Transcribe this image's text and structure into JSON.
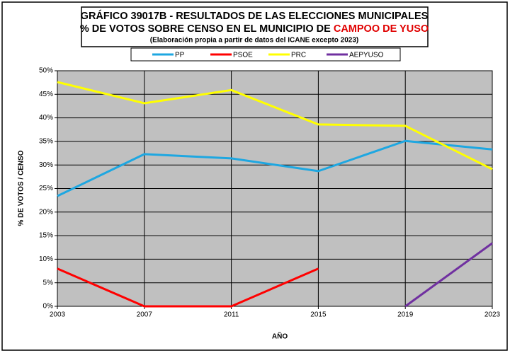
{
  "chart_data": {
    "type": "line",
    "title": "GRÁFICO 39017B - RESULTADOS DE LAS ELECCIONES MUNICIPALES",
    "subtitle_prefix": "% DE VOTOS SOBRE CENSO EN EL MUNICIPIO DE",
    "subtitle_highlight": "CAMPOO DE YUSO",
    "note": "(Elaboración propia a partir de datos del ICANE excepto 2023)",
    "x_label": "AÑO",
    "y_label": "% DE VOTOS / CENSO",
    "x": [
      2003,
      2007,
      2011,
      2015,
      2019,
      2023
    ],
    "xlim": [
      2003,
      2023
    ],
    "xticks": [
      2003,
      2007,
      2011,
      2015,
      2019,
      2023
    ],
    "ylim": [
      0,
      50
    ],
    "yticks": [
      {
        "value": 0,
        "label": "0%"
      },
      {
        "value": 5,
        "label": "5%"
      },
      {
        "value": 10,
        "label": "10%"
      },
      {
        "value": 15,
        "label": "15%"
      },
      {
        "value": 20,
        "label": "20%"
      },
      {
        "value": 25,
        "label": "25%"
      },
      {
        "value": 30,
        "label": "30%"
      },
      {
        "value": 35,
        "label": "35%"
      },
      {
        "value": 40,
        "label": "40%"
      },
      {
        "value": 45,
        "label": "45%"
      },
      {
        "value": 50,
        "label": "50%"
      }
    ],
    "grid": true,
    "series": [
      {
        "name": "PP",
        "color": "#1ea7e1",
        "values": [
          23.4,
          32.3,
          31.4,
          28.7,
          35.1,
          33.3
        ]
      },
      {
        "name": "PSOE",
        "color": "#ff0000",
        "values": [
          8.0,
          0,
          0,
          8.0,
          null,
          null
        ]
      },
      {
        "name": "PRC",
        "color": "#ffff00",
        "values": [
          47.6,
          43.1,
          45.9,
          38.6,
          38.3,
          29.1
        ]
      },
      {
        "name": "AEPYUSO",
        "color": "#7030a0",
        "values": [
          null,
          null,
          null,
          null,
          0,
          13.4
        ]
      }
    ]
  }
}
